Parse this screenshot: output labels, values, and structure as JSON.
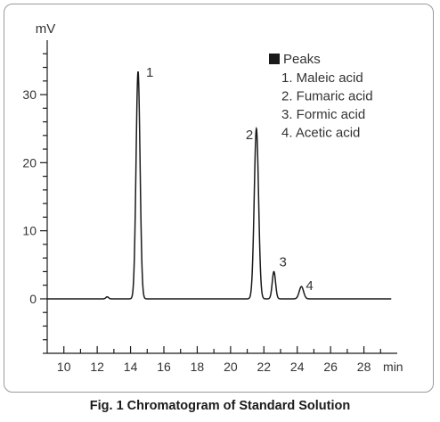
{
  "caption": "Fig. 1 Chromatogram of Standard Solution",
  "chart_data": {
    "type": "line",
    "title": "Fig. 1 Chromatogram of Standard Solution",
    "xlabel": "min",
    "ylabel": "mV",
    "xlim": [
      9,
      30
    ],
    "ylim": [
      -8,
      38
    ],
    "x_ticks": [
      10,
      12,
      14,
      16,
      18,
      20,
      22,
      24,
      26,
      28
    ],
    "y_ticks": [
      0,
      10,
      20,
      30
    ],
    "grid": false,
    "legend": {
      "position": "top-right",
      "title": "Peaks",
      "entries": [
        "1. Maleic acid",
        "2. Fumaric acid",
        "3. Formic acid",
        "4. Acetic acid"
      ]
    },
    "peaks": [
      {
        "label": "1",
        "name": "Maleic acid",
        "rt": 14.45,
        "height": 33.4
      },
      {
        "label": "2",
        "name": "Fumaric acid",
        "rt": 21.55,
        "height": 25.0
      },
      {
        "label": "3",
        "name": "Formic acid",
        "rt": 22.6,
        "height": 4.0
      },
      {
        "label": "4",
        "name": "Acetic acid",
        "rt": 24.25,
        "height": 1.8
      }
    ],
    "minor_disturbance": {
      "rt": 12.6,
      "height": 0.3
    },
    "baseline": 0,
    "colors": {
      "trace": "#1a1a1a",
      "axes": "#1a1a1a",
      "legend_marker": "#1a1a1a"
    }
  }
}
